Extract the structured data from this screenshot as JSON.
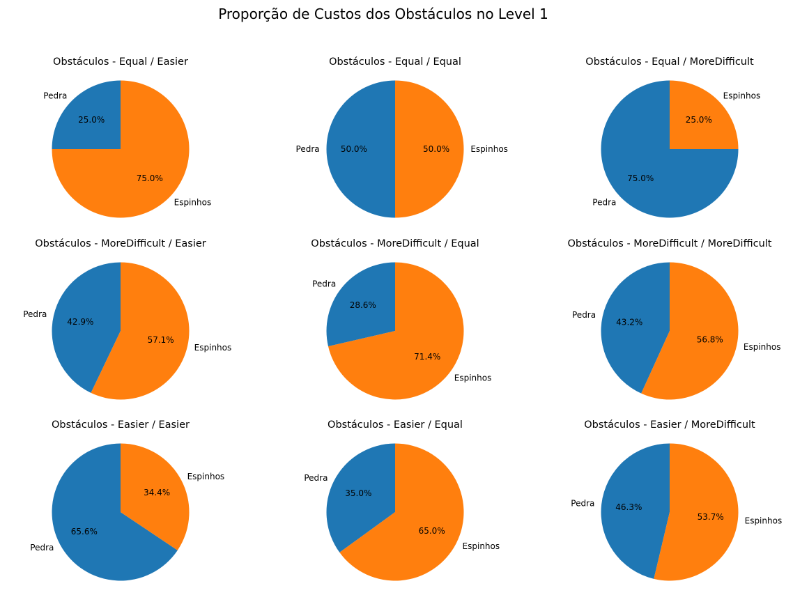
{
  "figure": {
    "title": "Proporção de Custos dos Obstáculos no Level 1"
  },
  "colors": {
    "Pedra": "#1f77b4",
    "Espinhos": "#ff7f0e"
  },
  "chart_data": [
    {
      "type": "pie",
      "title": "Obstáculos - Equal / Easier",
      "slices": [
        {
          "label": "Pedra",
          "value": 25.0,
          "pct_label": "25.0%"
        },
        {
          "label": "Espinhos",
          "value": 75.0,
          "pct_label": "75.0%"
        }
      ]
    },
    {
      "type": "pie",
      "title": "Obstáculos - Equal / Equal",
      "slices": [
        {
          "label": "Pedra",
          "value": 50.0,
          "pct_label": "50.0%"
        },
        {
          "label": "Espinhos",
          "value": 50.0,
          "pct_label": "50.0%"
        }
      ]
    },
    {
      "type": "pie",
      "title": "Obstáculos - Equal / MoreDifficult",
      "slices": [
        {
          "label": "Pedra",
          "value": 75.0,
          "pct_label": "75.0%"
        },
        {
          "label": "Espinhos",
          "value": 25.0,
          "pct_label": "25.0%"
        }
      ]
    },
    {
      "type": "pie",
      "title": "Obstáculos - MoreDifficult / Easier",
      "slices": [
        {
          "label": "Pedra",
          "value": 42.9,
          "pct_label": "42.9%"
        },
        {
          "label": "Espinhos",
          "value": 57.1,
          "pct_label": "57.1%"
        }
      ]
    },
    {
      "type": "pie",
      "title": "Obstáculos - MoreDifficult / Equal",
      "slices": [
        {
          "label": "Pedra",
          "value": 28.6,
          "pct_label": "28.6%"
        },
        {
          "label": "Espinhos",
          "value": 71.4,
          "pct_label": "71.4%"
        }
      ]
    },
    {
      "type": "pie",
      "title": "Obstáculos - MoreDifficult / MoreDifficult",
      "slices": [
        {
          "label": "Pedra",
          "value": 43.2,
          "pct_label": "43.2%"
        },
        {
          "label": "Espinhos",
          "value": 56.8,
          "pct_label": "56.8%"
        }
      ]
    },
    {
      "type": "pie",
      "title": "Obstáculos - Easier / Easier",
      "slices": [
        {
          "label": "Pedra",
          "value": 65.6,
          "pct_label": "65.6%"
        },
        {
          "label": "Espinhos",
          "value": 34.4,
          "pct_label": "34.4%"
        }
      ]
    },
    {
      "type": "pie",
      "title": "Obstáculos - Easier / Equal",
      "slices": [
        {
          "label": "Pedra",
          "value": 35.0,
          "pct_label": "35.0%"
        },
        {
          "label": "Espinhos",
          "value": 65.0,
          "pct_label": "65.0%"
        }
      ]
    },
    {
      "type": "pie",
      "title": "Obstáculos - Easier / MoreDifficult",
      "slices": [
        {
          "label": "Pedra",
          "value": 46.3,
          "pct_label": "46.3%"
        },
        {
          "label": "Espinhos",
          "value": 53.7,
          "pct_label": "53.7%"
        }
      ]
    }
  ]
}
